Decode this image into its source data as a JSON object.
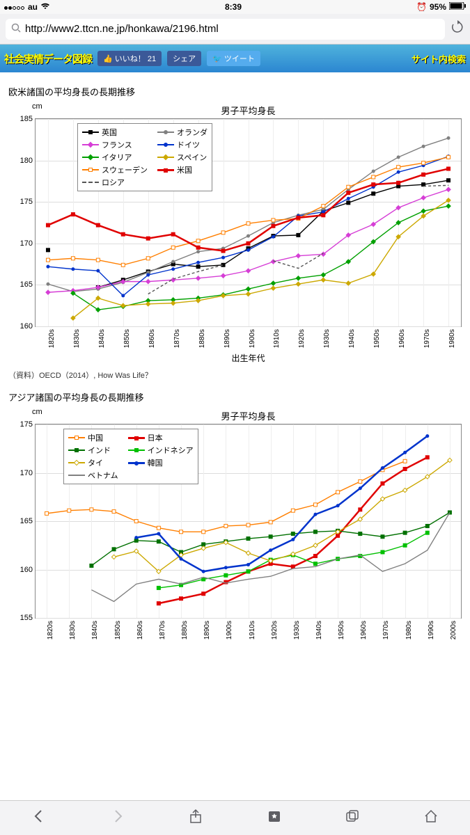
{
  "status": {
    "carrier": "au",
    "time": "8:39",
    "battery": "95%"
  },
  "url": "http://www2.ttcn.ne.jp/honkawa/2196.html",
  "banner": {
    "logo": "社会実情データ図録",
    "like": "いいね！ 21",
    "share": "シェア",
    "tweet": "ツイート",
    "search": "サイト内検索"
  },
  "heading1": "欧米諸国の平均身長の長期推移",
  "chart1": {
    "title": "男子平均身長",
    "yunit": "cm",
    "xlabel": "出生年代",
    "ylim": [
      160,
      185
    ],
    "yticks": [
      160,
      165,
      170,
      175,
      180,
      185
    ],
    "xticks": [
      "1820s",
      "1830s",
      "1840s",
      "1850s",
      "1860s",
      "1870s",
      "1880s",
      "1890s",
      "1900s",
      "1910s",
      "1920s",
      "1930s",
      "1940s",
      "1950s",
      "1960s",
      "1970s",
      "1980s"
    ],
    "legend": [
      {
        "label": "英国",
        "color": "#000000",
        "mark": "sq",
        "fill": true
      },
      {
        "label": "オランダ",
        "color": "#808080",
        "mark": "ci",
        "fill": true
      },
      {
        "label": "フランス",
        "color": "#d63ed6",
        "mark": "dia",
        "fill": true
      },
      {
        "label": "ドイツ",
        "color": "#0033cc",
        "mark": "ci",
        "fill": true
      },
      {
        "label": "イタリア",
        "color": "#00a000",
        "mark": "dia",
        "fill": true
      },
      {
        "label": "スペイン",
        "color": "#cca800",
        "mark": "dia",
        "fill": true
      },
      {
        "label": "スウェーデン",
        "color": "#ff7f00",
        "mark": "sqo",
        "fill": false
      },
      {
        "label": "米国",
        "color": "#e00000",
        "mark": "sq",
        "fill": true,
        "thick": true
      },
      {
        "label": "ロシア",
        "color": "#555555",
        "dash": true
      }
    ],
    "series": {
      "uk": [
        169.2,
        null,
        164.7,
        165.6,
        166.6,
        167.5,
        167.2,
        167.4,
        169.4,
        170.9,
        171.0,
        173.9,
        174.9,
        176.0,
        176.9,
        177.1,
        177.6
      ],
      "nl": [
        165.1,
        164.2,
        164.5,
        165.3,
        166.5,
        167.8,
        169.0,
        169.4,
        170.9,
        172.5,
        173.4,
        174.1,
        176.5,
        178.7,
        180.4,
        181.7,
        182.7
      ],
      "fr": [
        164.1,
        164.3,
        164.7,
        165.4,
        165.4,
        165.6,
        165.8,
        166.1,
        166.7,
        167.8,
        168.5,
        168.7,
        171.0,
        172.3,
        174.3,
        175.5,
        176.5
      ],
      "de": [
        167.2,
        166.9,
        166.7,
        163.7,
        166.2,
        166.9,
        167.7,
        168.3,
        169.2,
        170.8,
        173.3,
        173.8,
        175.4,
        176.8,
        178.6,
        179.4,
        180.5
      ],
      "it": [
        null,
        164.0,
        162.0,
        162.4,
        163.1,
        163.2,
        163.4,
        163.8,
        164.5,
        165.2,
        165.8,
        166.2,
        167.8,
        170.2,
        172.5,
        173.9,
        174.5
      ],
      "es": [
        null,
        161.0,
        163.4,
        162.5,
        162.7,
        162.8,
        163.1,
        163.7,
        163.9,
        164.6,
        165.1,
        165.6,
        165.2,
        166.3,
        170.8,
        173.3,
        175.2
      ],
      "se": [
        168.0,
        168.2,
        168.0,
        167.4,
        168.2,
        169.5,
        170.3,
        171.3,
        172.4,
        172.8,
        173.0,
        174.5,
        176.8,
        178.0,
        179.2,
        179.7,
        180.4
      ],
      "us": [
        172.2,
        173.5,
        172.2,
        171.1,
        170.6,
        171.1,
        169.5,
        169.1,
        170.0,
        172.1,
        173.1,
        173.4,
        176.1,
        177.1,
        177.3,
        178.3,
        179.0
      ],
      "ru": [
        null,
        null,
        null,
        null,
        163.9,
        165.7,
        166.6,
        167.4,
        null,
        167.9,
        167.0,
        168.8,
        null,
        170.8,
        null,
        176.9,
        177.0
      ]
    },
    "colors": {
      "uk": "#000000",
      "nl": "#808080",
      "fr": "#d63ed6",
      "de": "#0033cc",
      "it": "#00a000",
      "es": "#cca800",
      "se": "#ff7f00",
      "us": "#e00000",
      "ru": "#555555"
    },
    "thick": [
      "us"
    ],
    "dashed": [
      "ru"
    ],
    "marks": {
      "uk": "sq",
      "nl": "ci",
      "fr": "dia",
      "de": "ci",
      "it": "dia",
      "es": "dia",
      "se": "sqo",
      "us": "sq"
    }
  },
  "source": "（資料）OECD（2014）, How Was Life？",
  "heading2": "アジア諸国の平均身長の長期推移",
  "chart2": {
    "title": "男子平均身長",
    "yunit": "cm",
    "ylim": [
      155,
      175
    ],
    "yticks": [
      155,
      160,
      165,
      170,
      175
    ],
    "xticks": [
      "1820s",
      "1830s",
      "1840s",
      "1850s",
      "1860s",
      "1870s",
      "1880s",
      "1890s",
      "1900s",
      "1910s",
      "1920s",
      "1930s",
      "1940s",
      "1950s",
      "1960s",
      "1970s",
      "1980s",
      "1990s",
      "2000s"
    ],
    "legend": [
      {
        "label": "中国",
        "color": "#ff7f00",
        "mark": "sqo",
        "fill": false
      },
      {
        "label": "日本",
        "color": "#e00000",
        "mark": "sq",
        "fill": true,
        "thick": true
      },
      {
        "label": "インド",
        "color": "#007000",
        "mark": "sq",
        "fill": true
      },
      {
        "label": "インドネシア",
        "color": "#00c000",
        "mark": "sq",
        "fill": true
      },
      {
        "label": "タイ",
        "color": "#cca800",
        "mark": "diao",
        "fill": false
      },
      {
        "label": "韓国",
        "color": "#0033cc",
        "mark": "ci",
        "fill": true,
        "thick": true
      },
      {
        "label": "ベトナム",
        "color": "#808080"
      }
    ],
    "series": {
      "cn": [
        165.8,
        166.1,
        166.2,
        166.0,
        165.0,
        164.3,
        163.9,
        163.9,
        164.5,
        164.6,
        164.9,
        166.1,
        166.7,
        168.0,
        169.1,
        170.3,
        171.2,
        null,
        null
      ],
      "jp": [
        null,
        null,
        null,
        null,
        null,
        156.5,
        157.0,
        157.5,
        158.7,
        159.8,
        160.6,
        160.3,
        161.4,
        163.5,
        166.2,
        168.9,
        170.4,
        171.6,
        null
      ],
      "in": [
        null,
        null,
        160.4,
        162.1,
        163.0,
        162.9,
        161.8,
        162.6,
        162.9,
        163.2,
        163.4,
        163.7,
        163.9,
        164.0,
        163.7,
        163.4,
        163.8,
        164.5,
        165.9
      ],
      "id": [
        null,
        null,
        null,
        null,
        null,
        158.1,
        158.4,
        159.0,
        159.4,
        159.8,
        161.0,
        161.5,
        160.6,
        161.1,
        161.4,
        161.8,
        162.5,
        163.8,
        null
      ],
      "th": [
        null,
        null,
        null,
        161.3,
        161.9,
        159.8,
        161.5,
        162.2,
        162.8,
        161.7,
        160.9,
        161.6,
        162.5,
        163.9,
        165.2,
        167.3,
        168.2,
        169.6,
        171.3
      ],
      "kr": [
        null,
        null,
        null,
        null,
        163.3,
        163.7,
        161.1,
        159.8,
        160.2,
        160.5,
        162.0,
        163.1,
        165.7,
        166.6,
        168.4,
        170.5,
        172.1,
        173.8,
        null
      ],
      "vn": [
        null,
        null,
        157.9,
        156.7,
        158.5,
        159.0,
        158.5,
        159.2,
        158.6,
        159.0,
        159.3,
        160.1,
        160.3,
        161.1,
        161.5,
        159.8,
        160.6,
        162.0,
        165.9
      ]
    },
    "colors": {
      "cn": "#ff7f00",
      "jp": "#e00000",
      "in": "#007000",
      "id": "#00c000",
      "th": "#cca800",
      "kr": "#0033cc",
      "vn": "#808080"
    },
    "thick": [
      "jp",
      "kr"
    ],
    "dashed": [],
    "marks": {
      "cn": "sqo",
      "jp": "sq",
      "in": "sq",
      "id": "sq",
      "th": "diao",
      "kr": "ci"
    }
  }
}
